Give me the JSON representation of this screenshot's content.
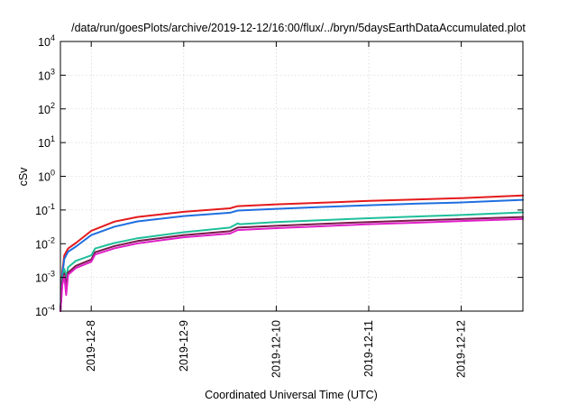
{
  "chart_data": {
    "type": "line",
    "title": "/data/run/goesPlots/archive/2019-12-12/16:00/flux/../bryn/5daysEarthDataAccumulated.plot",
    "xlabel": "Coordinated Universal Time (UTC)",
    "ylabel": "cSv",
    "x_scale": "time",
    "y_scale": "log",
    "xlim": [
      "2019-12-07 16:00",
      "2019-12-12 16:00"
    ],
    "ylim": [
      0.0001,
      10000
    ],
    "x_ticks": [
      "2019-12-8",
      "2019-12-9",
      "2019-12-10",
      "2019-12-11",
      "2019-12-12"
    ],
    "y_ticks": [
      {
        "base": "10",
        "exp": "-4",
        "value": 0.0001
      },
      {
        "base": "10",
        "exp": "-3",
        "value": 0.001
      },
      {
        "base": "10",
        "exp": "-2",
        "value": 0.01
      },
      {
        "base": "10",
        "exp": "-1",
        "value": 0.1
      },
      {
        "base": "10",
        "exp": "0",
        "value": 1
      },
      {
        "base": "10",
        "exp": "1",
        "value": 10
      },
      {
        "base": "10",
        "exp": "2",
        "value": 100
      },
      {
        "base": "10",
        "exp": "3",
        "value": 1000
      },
      {
        "base": "10",
        "exp": "4",
        "value": 10000
      }
    ],
    "grid": true,
    "legend": "none",
    "series": [
      {
        "color": "#e41a1c",
        "points": [
          [
            "2019-12-07 16:00",
            0.0001
          ],
          [
            "2019-12-07 16:30",
            0.0015
          ],
          [
            "2019-12-07 17:00",
            0.0045
          ],
          [
            "2019-12-07 18:00",
            0.0072
          ],
          [
            "2019-12-07 20:00",
            0.0105
          ],
          [
            "2019-12-08 00:00",
            0.024
          ],
          [
            "2019-12-08 06:00",
            0.045
          ],
          [
            "2019-12-08 12:00",
            0.062
          ],
          [
            "2019-12-09 00:00",
            0.088
          ],
          [
            "2019-12-09 12:00",
            0.112
          ],
          [
            "2019-12-09 14:00",
            0.13
          ],
          [
            "2019-12-10 00:00",
            0.147
          ],
          [
            "2019-12-10 12:00",
            0.164
          ],
          [
            "2019-12-11 00:00",
            0.186
          ],
          [
            "2019-12-11 12:00",
            0.204
          ],
          [
            "2019-12-12 00:00",
            0.225
          ],
          [
            "2019-12-12 16:00",
            0.27
          ]
        ]
      },
      {
        "color": "#1f6fe0",
        "points": [
          [
            "2019-12-07 16:00",
            0.0001
          ],
          [
            "2019-12-07 16:30",
            0.0012
          ],
          [
            "2019-12-07 17:00",
            0.0035
          ],
          [
            "2019-12-07 18:00",
            0.0058
          ],
          [
            "2019-12-07 20:00",
            0.0082
          ],
          [
            "2019-12-08 00:00",
            0.018
          ],
          [
            "2019-12-08 06:00",
            0.032
          ],
          [
            "2019-12-08 12:00",
            0.046
          ],
          [
            "2019-12-09 00:00",
            0.066
          ],
          [
            "2019-12-09 12:00",
            0.083
          ],
          [
            "2019-12-09 14:00",
            0.096
          ],
          [
            "2019-12-10 00:00",
            0.108
          ],
          [
            "2019-12-10 12:00",
            0.123
          ],
          [
            "2019-12-11 00:00",
            0.138
          ],
          [
            "2019-12-11 12:00",
            0.154
          ],
          [
            "2019-12-12 00:00",
            0.168
          ],
          [
            "2019-12-12 16:00",
            0.2
          ]
        ]
      },
      {
        "color": "#1fbf9a",
        "points": [
          [
            "2019-12-07 16:00",
            0.0001
          ],
          [
            "2019-12-07 16:30",
            0.0009
          ],
          [
            "2019-12-07 17:00",
            0.0018
          ],
          [
            "2019-12-07 17:30",
            0.001
          ],
          [
            "2019-12-07 18:00",
            0.002
          ],
          [
            "2019-12-07 20:00",
            0.0031
          ],
          [
            "2019-12-08 00:00",
            0.0045
          ],
          [
            "2019-12-08 01:00",
            0.0072
          ],
          [
            "2019-12-08 06:00",
            0.0105
          ],
          [
            "2019-12-08 12:00",
            0.0145
          ],
          [
            "2019-12-09 00:00",
            0.022
          ],
          [
            "2019-12-09 12:00",
            0.03
          ],
          [
            "2019-12-09 14:00",
            0.04
          ],
          [
            "2019-12-09 14:30",
            0.038
          ],
          [
            "2019-12-10 00:00",
            0.044
          ],
          [
            "2019-12-10 12:00",
            0.05
          ],
          [
            "2019-12-11 00:00",
            0.057
          ],
          [
            "2019-12-11 12:00",
            0.064
          ],
          [
            "2019-12-12 00:00",
            0.071
          ],
          [
            "2019-12-12 16:00",
            0.085
          ]
        ]
      },
      {
        "color": "#7a1a4a",
        "points": [
          [
            "2019-12-07 16:00",
            0.0001
          ],
          [
            "2019-12-07 16:30",
            0.0007
          ],
          [
            "2019-12-07 17:00",
            0.0013
          ],
          [
            "2019-12-07 17:30",
            0.0006
          ],
          [
            "2019-12-07 18:00",
            0.0014
          ],
          [
            "2019-12-07 20:00",
            0.0022
          ],
          [
            "2019-12-08 00:00",
            0.0034
          ],
          [
            "2019-12-08 01:00",
            0.0056
          ],
          [
            "2019-12-08 06:00",
            0.0085
          ],
          [
            "2019-12-08 12:00",
            0.012
          ],
          [
            "2019-12-09 00:00",
            0.018
          ],
          [
            "2019-12-09 12:00",
            0.0235
          ],
          [
            "2019-12-09 14:00",
            0.03
          ],
          [
            "2019-12-10 00:00",
            0.034
          ],
          [
            "2019-12-10 12:00",
            0.039
          ],
          [
            "2019-12-11 00:00",
            0.044
          ],
          [
            "2019-12-11 12:00",
            0.049
          ],
          [
            "2019-12-12 00:00",
            0.054
          ],
          [
            "2019-12-12 16:00",
            0.062
          ]
        ]
      },
      {
        "color": "#e020c8",
        "points": [
          [
            "2019-12-07 16:00",
            0.0001
          ],
          [
            "2019-12-07 16:30",
            0.0006
          ],
          [
            "2019-12-07 17:00",
            0.0011
          ],
          [
            "2019-12-07 17:30",
            0.0003
          ],
          [
            "2019-12-07 18:00",
            0.0012
          ],
          [
            "2019-12-07 20:00",
            0.0019
          ],
          [
            "2019-12-08 00:00",
            0.0029
          ],
          [
            "2019-12-08 01:00",
            0.0048
          ],
          [
            "2019-12-08 06:00",
            0.0073
          ],
          [
            "2019-12-08 12:00",
            0.0102
          ],
          [
            "2019-12-09 00:00",
            0.0155
          ],
          [
            "2019-12-09 12:00",
            0.02
          ],
          [
            "2019-12-09 14:00",
            0.0255
          ],
          [
            "2019-12-10 00:00",
            0.029
          ],
          [
            "2019-12-10 12:00",
            0.033
          ],
          [
            "2019-12-11 00:00",
            0.038
          ],
          [
            "2019-12-11 12:00",
            0.042
          ],
          [
            "2019-12-12 00:00",
            0.047
          ],
          [
            "2019-12-12 16:00",
            0.054
          ]
        ]
      }
    ]
  }
}
